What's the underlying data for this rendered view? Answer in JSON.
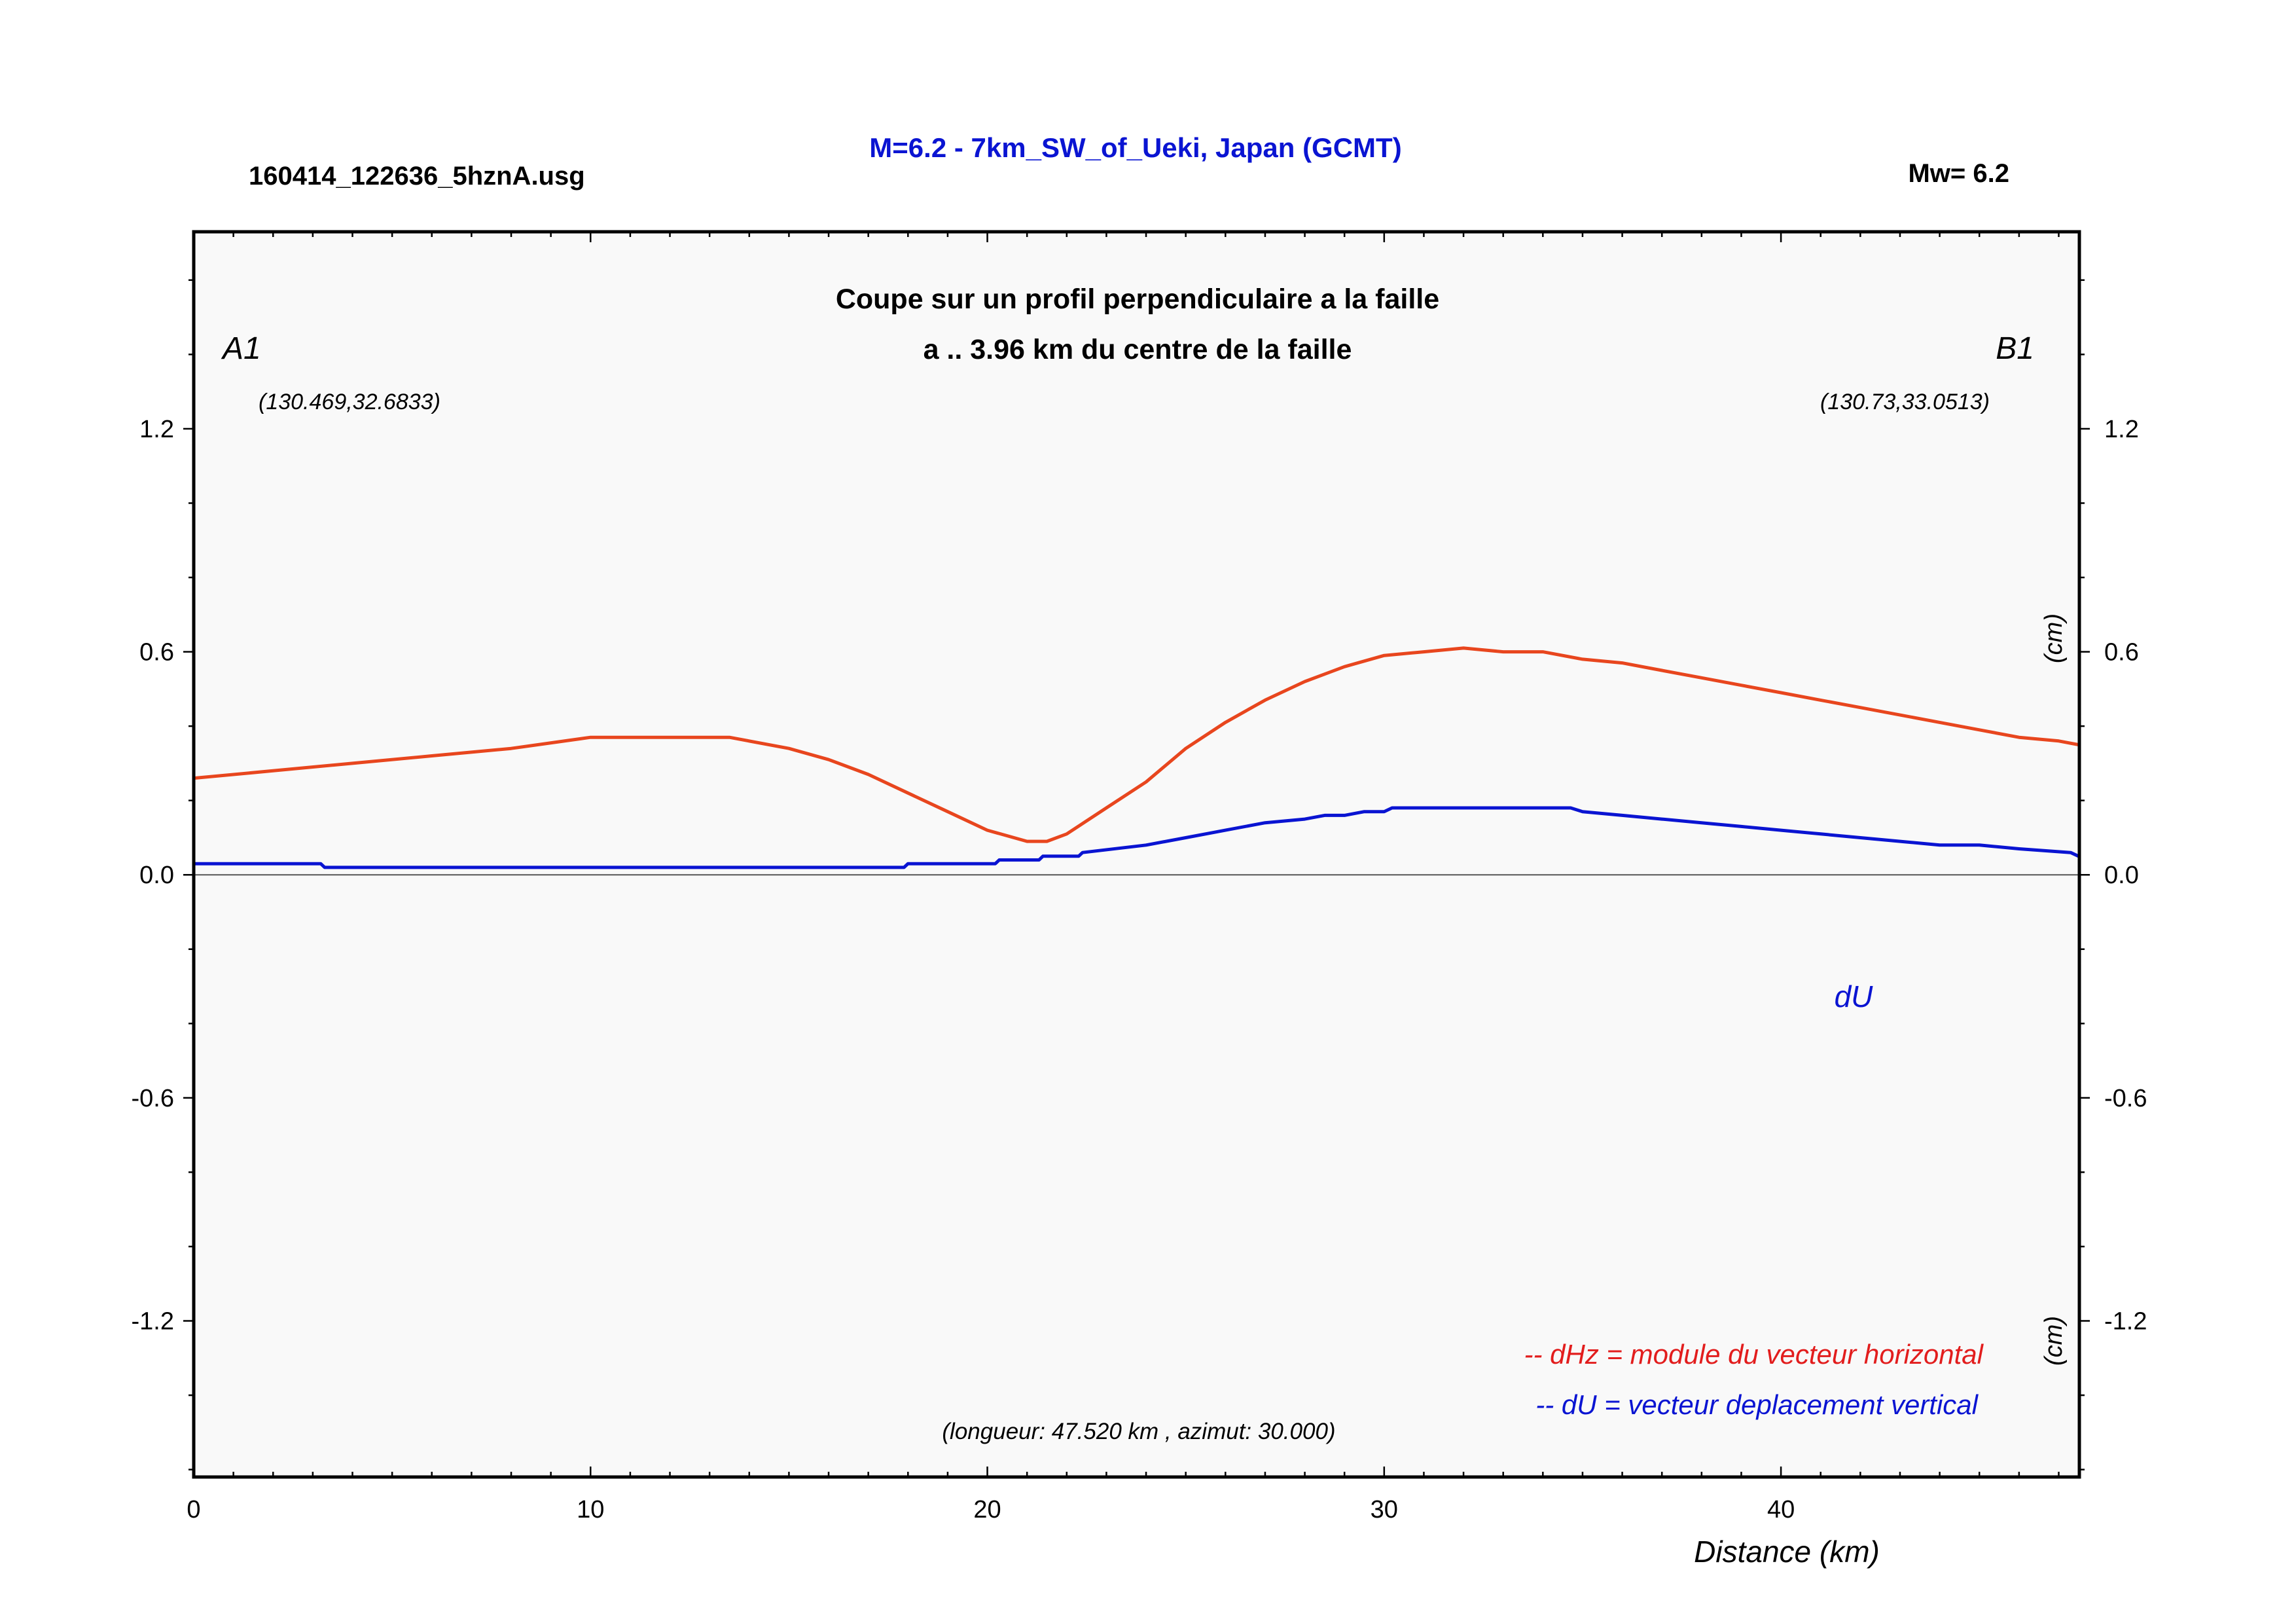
{
  "header": {
    "file_name": "160414_122636_5hznA.usg",
    "event_title": "M=6.2 - 7km_SW_of_Ueki, Japan (GCMT)",
    "magnitude": "Mw= 6.2"
  },
  "colors": {
    "title_blue": "#0a14d2",
    "dHz_line": "#e8461e",
    "dU_line": "#0a14d2",
    "legend_red": "#e21d1d",
    "plot_bg": "#f9f9f9"
  },
  "chart_data": {
    "type": "line",
    "title": "Coupe sur un profil perpendiculaire a la faille",
    "subtitle": "a .. 3.96 km du centre de la faille",
    "xlabel": "Distance (km)",
    "ylabel_right_upper": "(cm)",
    "ylabel_right_lower": "(cm)",
    "xlim": [
      0,
      47.52
    ],
    "ylim": [
      -1.62,
      1.73
    ],
    "x_ticks": [
      0,
      10,
      20,
      30,
      40
    ],
    "x_tick_labels": [
      "0",
      "10",
      "20",
      "30",
      "40"
    ],
    "y_ticks": [
      1.2,
      0.6,
      0.0,
      -0.6,
      -1.2
    ],
    "y_tick_labels": [
      "1.2",
      "0.6",
      "0.0",
      "-0.6",
      "-1.2"
    ],
    "grid": false,
    "zero_line": true,
    "endpoints": {
      "left_name": "A1",
      "left_coords": "(130.469,32.6833)",
      "right_name": "B1",
      "right_coords": "(130.73,33.0513)"
    },
    "profile_info": "(longueur: 47.520 km , azimut: 30.000)",
    "series_label_dU": "dU",
    "legend": {
      "dHz": "-- dHz = module du vecteur horizontal",
      "dU": "-- dU =  vecteur deplacement vertical"
    },
    "series": [
      {
        "name": "dHz",
        "color": "#e8461e",
        "x": [
          0,
          2,
          4,
          6,
          8,
          10,
          12,
          13.5,
          15,
          16,
          17,
          18,
          19,
          20,
          21,
          21.5,
          22,
          23,
          24,
          25,
          26,
          27,
          28,
          29,
          30,
          31,
          32,
          33,
          34,
          35,
          36,
          37,
          38,
          39,
          40,
          41,
          42,
          43,
          44,
          45,
          46,
          47,
          47.5
        ],
        "y": [
          0.26,
          0.28,
          0.3,
          0.32,
          0.34,
          0.37,
          0.37,
          0.37,
          0.34,
          0.31,
          0.27,
          0.22,
          0.17,
          0.12,
          0.09,
          0.09,
          0.11,
          0.18,
          0.25,
          0.34,
          0.41,
          0.47,
          0.52,
          0.56,
          0.59,
          0.6,
          0.61,
          0.6,
          0.6,
          0.58,
          0.57,
          0.55,
          0.53,
          0.51,
          0.49,
          0.47,
          0.45,
          0.43,
          0.41,
          0.39,
          0.37,
          0.36,
          0.35
        ]
      },
      {
        "name": "dU",
        "color": "#0a14d2",
        "x": [
          0,
          3.2,
          3.3,
          17.9,
          18,
          20.2,
          20.3,
          21.3,
          21.4,
          22.3,
          22.4,
          24,
          25,
          26,
          27,
          28,
          28.5,
          29,
          29.5,
          30,
          30.2,
          34.7,
          35,
          36,
          37,
          38,
          39,
          40,
          41,
          42,
          43,
          44,
          45,
          46,
          47.3,
          47.5
        ],
        "y": [
          0.03,
          0.03,
          0.02,
          0.02,
          0.03,
          0.03,
          0.04,
          0.04,
          0.05,
          0.05,
          0.06,
          0.08,
          0.1,
          0.12,
          0.14,
          0.15,
          0.16,
          0.16,
          0.17,
          0.17,
          0.18,
          0.18,
          0.17,
          0.16,
          0.15,
          0.14,
          0.13,
          0.12,
          0.11,
          0.1,
          0.09,
          0.08,
          0.08,
          0.07,
          0.06,
          0.05
        ]
      }
    ]
  }
}
